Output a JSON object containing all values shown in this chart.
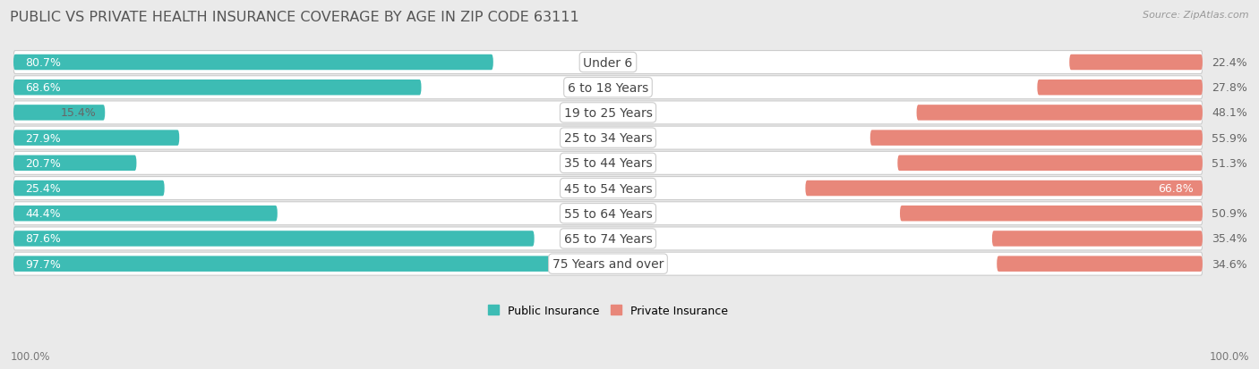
{
  "title": "PUBLIC VS PRIVATE HEALTH INSURANCE COVERAGE BY AGE IN ZIP CODE 63111",
  "source": "Source: ZipAtlas.com",
  "categories": [
    "Under 6",
    "6 to 18 Years",
    "19 to 25 Years",
    "25 to 34 Years",
    "35 to 44 Years",
    "45 to 54 Years",
    "55 to 64 Years",
    "65 to 74 Years",
    "75 Years and over"
  ],
  "public_values": [
    80.7,
    68.6,
    15.4,
    27.9,
    20.7,
    25.4,
    44.4,
    87.6,
    97.7
  ],
  "private_values": [
    22.4,
    27.8,
    48.1,
    55.9,
    51.3,
    66.8,
    50.9,
    35.4,
    34.6
  ],
  "public_color": "#3DBCB4",
  "private_color": "#E8877A",
  "private_color_dark": "#D4695C",
  "bg_color": "#EAEAEA",
  "row_bg_even": "#F5F5F5",
  "row_bg_odd": "#EBEBEB",
  "axis_label_left": "100.0%",
  "axis_label_right": "100.0%",
  "max_value": 100.0,
  "title_fontsize": 11.5,
  "label_fontsize": 9,
  "category_fontsize": 10,
  "value_label_color_inside": "white",
  "value_label_color_outside": "#666666"
}
